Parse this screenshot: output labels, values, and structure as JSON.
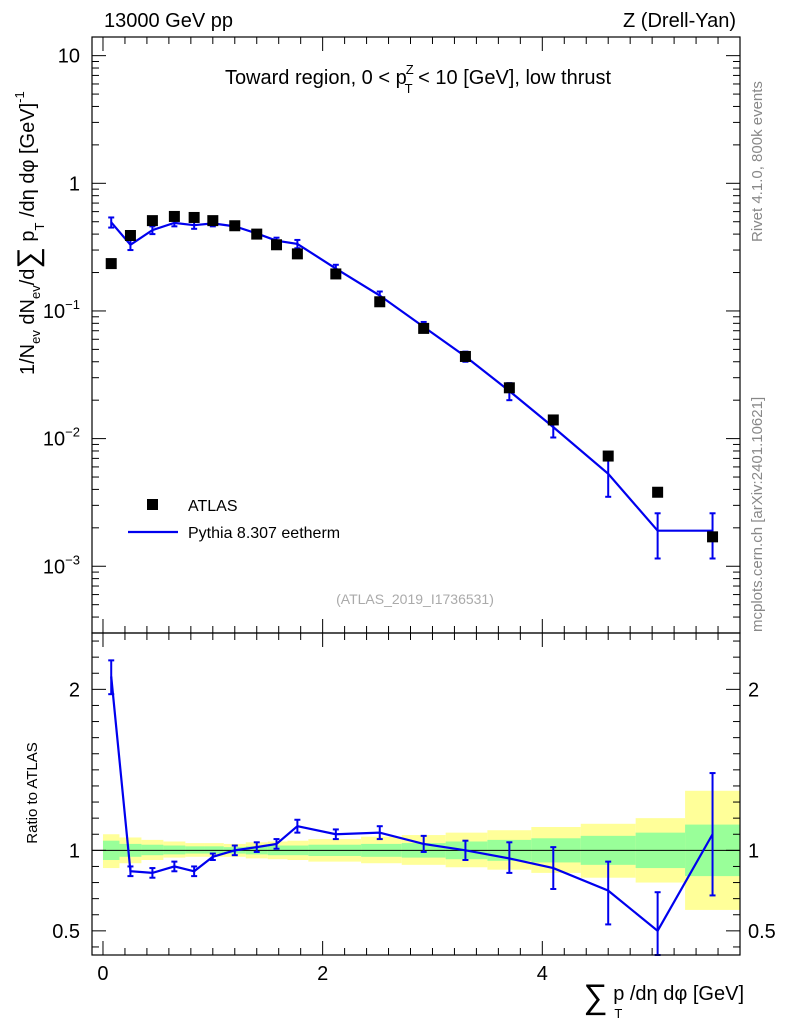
{
  "header": {
    "left": "13000 GeV pp",
    "right": "Z (Drell-Yan)"
  },
  "side_labels": {
    "version": "Rivet 4.1.0,  800k events",
    "site": "mcplots.cern.ch [arXiv:2401.10621]"
  },
  "chart_data": [
    {
      "id": "main",
      "type": "scatter",
      "title": "Toward region, 0 < pZT < 10 [GeV], low thrust",
      "title_parts": {
        "pre": "Toward region, 0 < p",
        "sup": "Z",
        "sub": "T",
        "post": " < 10 [GeV], low thrust"
      },
      "ylabel": "1/Nev dNev/d∑ pT /dη dφ  [GeV]-1",
      "ylabel_parts": {
        "a": "1/N",
        "a_sub": "ev",
        "b": " dN",
        "b_sub": "ev",
        "c": "/d",
        "sum": "∑",
        "d": " p",
        "d_sub": "T",
        "e": " /dη dφ  [GeV]",
        "e_sup": "-1"
      },
      "yscale": "log",
      "ylim": [
        0.0003,
        14
      ],
      "xlim": [
        -0.1,
        5.8
      ],
      "yticks": [
        {
          "value": 10,
          "label": "10"
        },
        {
          "value": 1,
          "label": "1"
        },
        {
          "value": 0.1,
          "label": "10⁻¹",
          "base": "10",
          "exp": "−1"
        },
        {
          "value": 0.01,
          "label": "10⁻²",
          "base": "10",
          "exp": "−2"
        },
        {
          "value": 0.001,
          "label": "10⁻³",
          "base": "10",
          "exp": "−3"
        }
      ],
      "watermark": "(ATLAS_2019_I1736531)",
      "legend": {
        "position": "bottom-left",
        "entries": [
          {
            "label": "ATLAS",
            "marker": "square",
            "color": "#000000"
          },
          {
            "label": "Pythia 8.307 eetherm",
            "marker": "line",
            "color": "#0000ee"
          }
        ]
      },
      "series": [
        {
          "name": "ATLAS",
          "color": "#000000",
          "x": [
            0.075,
            0.25,
            0.45,
            0.65,
            0.83,
            1.0,
            1.2,
            1.4,
            1.58,
            1.77,
            2.12,
            2.52,
            2.92,
            3.3,
            3.7,
            4.1,
            4.6,
            5.05,
            5.55
          ],
          "y": [
            0.235,
            0.39,
            0.51,
            0.55,
            0.54,
            0.51,
            0.465,
            0.4,
            0.33,
            0.28,
            0.195,
            0.118,
            0.073,
            0.044,
            0.025,
            0.014,
            0.0073,
            0.0038,
            0.0017
          ]
        },
        {
          "name": "Pythia 8.307 eetherm",
          "color": "#0000ee",
          "x": [
            0.075,
            0.25,
            0.45,
            0.65,
            0.83,
            1.0,
            1.2,
            1.4,
            1.58,
            1.77,
            2.12,
            2.52,
            2.92,
            3.3,
            3.7,
            4.1,
            4.6,
            5.05,
            5.55
          ],
          "y": [
            0.495,
            0.33,
            0.43,
            0.49,
            0.47,
            0.485,
            0.46,
            0.405,
            0.355,
            0.335,
            0.215,
            0.132,
            0.075,
            0.044,
            0.0236,
            0.0123,
            0.0053,
            0.0019,
            0.0019
          ],
          "err_lo": [
            0.45,
            0.3,
            0.4,
            0.46,
            0.44,
            0.46,
            0.44,
            0.385,
            0.335,
            0.31,
            0.2,
            0.122,
            0.068,
            0.04,
            0.02,
            0.0102,
            0.0035,
            0.00115,
            0.00115
          ],
          "err_hi": [
            0.54,
            0.36,
            0.46,
            0.52,
            0.5,
            0.51,
            0.48,
            0.425,
            0.375,
            0.36,
            0.23,
            0.142,
            0.082,
            0.048,
            0.0272,
            0.0145,
            0.0072,
            0.0026,
            0.0026
          ]
        }
      ]
    },
    {
      "id": "ratio",
      "type": "line",
      "ylabel": "Ratio to ATLAS",
      "xlabel": "∑ pT /dη dφ [GeV]",
      "xlabel_parts": {
        "sum": "∑",
        "a": " p",
        "a_sub": "T",
        "b": " /dη dφ [GeV]"
      },
      "ylim": [
        0.35,
        2.35
      ],
      "xlim": [
        -0.1,
        5.8
      ],
      "yticks": [
        {
          "value": 2,
          "label": "2"
        },
        {
          "value": 1,
          "label": "1"
        },
        {
          "value": 0.5,
          "label": "0.5"
        }
      ],
      "xticks": [
        {
          "value": 0,
          "label": "0"
        },
        {
          "value": 2,
          "label": "2"
        },
        {
          "value": 4,
          "label": "4"
        }
      ],
      "reference_line": 1,
      "uncertainty_bands": {
        "edges": [
          0.0,
          0.15,
          0.35,
          0.55,
          0.75,
          0.92,
          1.1,
          1.3,
          1.5,
          1.68,
          1.87,
          2.35,
          2.72,
          3.12,
          3.5,
          3.9,
          4.35,
          4.85,
          5.3,
          5.8
        ],
        "green_lo": [
          0.94,
          0.96,
          0.97,
          0.975,
          0.98,
          0.98,
          0.98,
          0.975,
          0.97,
          0.97,
          0.965,
          0.96,
          0.955,
          0.945,
          0.935,
          0.925,
          0.91,
          0.89,
          0.84
        ],
        "green_hi": [
          1.06,
          1.04,
          1.035,
          1.03,
          1.025,
          1.025,
          1.02,
          1.025,
          1.03,
          1.03,
          1.035,
          1.04,
          1.045,
          1.055,
          1.065,
          1.075,
          1.09,
          1.11,
          1.16
        ],
        "yellow_lo": [
          0.89,
          0.92,
          0.94,
          0.955,
          0.96,
          0.96,
          0.96,
          0.95,
          0.945,
          0.94,
          0.93,
          0.92,
          0.91,
          0.895,
          0.88,
          0.86,
          0.83,
          0.8,
          0.63
        ],
        "yellow_hi": [
          1.1,
          1.08,
          1.065,
          1.055,
          1.045,
          1.045,
          1.04,
          1.05,
          1.055,
          1.06,
          1.07,
          1.085,
          1.095,
          1.11,
          1.125,
          1.145,
          1.165,
          1.2,
          1.37
        ]
      },
      "series": [
        {
          "name": "Pythia 8.307 eetherm / ATLAS",
          "color": "#0000ee",
          "x": [
            0.075,
            0.25,
            0.45,
            0.65,
            0.83,
            1.0,
            1.2,
            1.4,
            1.58,
            1.77,
            2.12,
            2.52,
            2.92,
            3.3,
            3.7,
            4.1,
            4.6,
            5.05,
            5.55
          ],
          "y": [
            2.08,
            0.87,
            0.86,
            0.9,
            0.87,
            0.96,
            1.0,
            1.02,
            1.04,
            1.15,
            1.1,
            1.11,
            1.04,
            1.0,
            0.95,
            0.89,
            0.75,
            0.5,
            1.1
          ],
          "err_lo": [
            1.97,
            0.84,
            0.83,
            0.87,
            0.84,
            0.94,
            0.97,
            0.99,
            1.01,
            1.11,
            1.07,
            1.07,
            0.99,
            0.94,
            0.86,
            0.76,
            0.54,
            0.35,
            0.72
          ],
          "err_hi": [
            2.18,
            0.9,
            0.89,
            0.93,
            0.9,
            0.98,
            1.03,
            1.05,
            1.07,
            1.19,
            1.13,
            1.15,
            1.09,
            1.06,
            1.05,
            1.02,
            0.93,
            0.74,
            1.48
          ]
        }
      ]
    }
  ]
}
